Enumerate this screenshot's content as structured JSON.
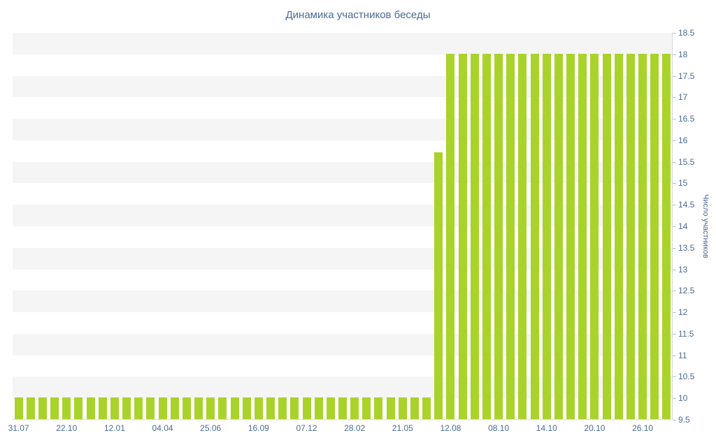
{
  "chart_data": {
    "type": "bar",
    "title": "Динамика участников беседы",
    "ylabel": "Число участников",
    "xlabel": "",
    "ylim": [
      9.5,
      18.5
    ],
    "y_ticks": [
      18.5,
      18,
      17.5,
      17,
      16.5,
      16,
      15.5,
      15,
      14.5,
      14,
      13.5,
      13,
      12.5,
      12,
      11.5,
      11,
      10.5,
      10,
      9.5
    ],
    "x_tick_labels": [
      "31.07",
      "22.10",
      "12.01",
      "04.04",
      "25.06",
      "16.09",
      "07.12",
      "28.02",
      "21.05",
      "12.08",
      "08.10",
      "14.10",
      "20.10",
      "26.10"
    ],
    "label_every_n_bars": 4,
    "values": [
      10,
      10,
      10,
      10,
      10,
      10,
      10,
      10,
      10,
      10,
      10,
      10,
      10,
      10,
      10,
      10,
      10,
      10,
      10,
      10,
      10,
      10,
      10,
      10,
      10,
      10,
      10,
      10,
      10,
      10,
      10,
      10,
      10,
      10,
      10,
      15.7,
      18,
      18,
      18,
      18,
      18,
      18,
      18,
      18,
      18,
      18,
      18,
      18,
      18,
      18,
      18,
      18,
      18,
      18,
      18
    ],
    "grid": "alternating-horizontal-bands",
    "legend": "none",
    "bar_color": "#a9d32a",
    "band_color": "#f5f5f5",
    "text_color": "#4a6b96",
    "axis_line_color": "#d4d9de",
    "tick_color": "#b9bfc6"
  }
}
